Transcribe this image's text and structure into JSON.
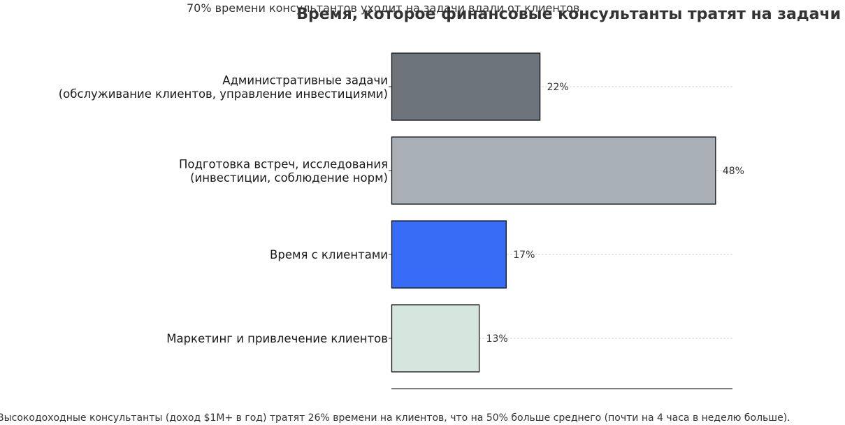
{
  "chart_data": {
    "type": "bar",
    "orientation": "horizontal",
    "title": "Время, которое финансовые консультанты тратят на задачи",
    "subtitle": "70% времени консультантов уходит на задачи вдали от клиентов",
    "categories": [
      [
        "Административные задачи",
        "(обслуживание клиентов, управление инвестициями)"
      ],
      [
        "Подготовка встреч, исследования",
        "(инвестиции, соблюдение норм)"
      ],
      [
        "Время с клиентами"
      ],
      [
        "Маркетинг и привлечение клиентов"
      ]
    ],
    "values": [
      22,
      48,
      17,
      13
    ],
    "value_labels": [
      "22%",
      "48%",
      "17%",
      "13%"
    ],
    "colors": [
      "#6c737b",
      "#aab0b8",
      "#366cf6",
      "#d5e6df"
    ],
    "xlim": [
      0,
      50.5
    ],
    "xlabel": "",
    "ylabel": "",
    "grid": "horizontal dashed at bar centers",
    "footnote": "Высокодоходные консультанты (доход $1M+ в год) тратят 26% времени на клиентов, что на 50% больше среднего (почти на 4 часа в неделю больше)."
  }
}
